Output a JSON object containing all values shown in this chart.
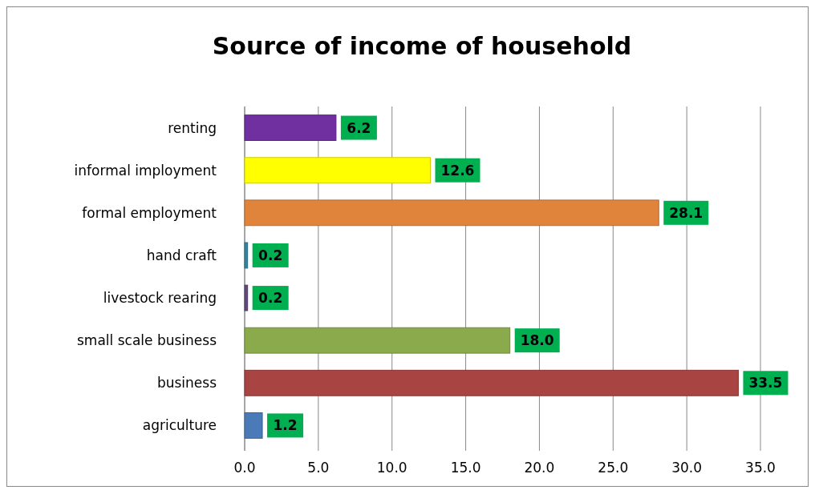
{
  "chart_data": {
    "type": "bar",
    "orientation": "horizontal",
    "title": "Source of income of household",
    "categories": [
      "renting",
      "informal imployment",
      "formal employment",
      "hand craft",
      "livestock rearing",
      "small scale business",
      "business",
      "agriculture"
    ],
    "values": [
      6.2,
      12.6,
      28.1,
      0.2,
      0.2,
      18.0,
      33.5,
      1.2
    ],
    "colors": [
      "#7030a0",
      "#ffff00",
      "#e0843c",
      "#31859c",
      "#604a7b",
      "#8aaa4c",
      "#a84442",
      "#4a7ab8"
    ],
    "value_labels": [
      "6.2",
      "12.6",
      "28.1",
      "0.2",
      "0.2",
      "18.0",
      "33.5",
      "1.2"
    ],
    "xlim": [
      0,
      35
    ],
    "xticks": [
      {
        "value": 0,
        "label": "0.0"
      },
      {
        "value": 5,
        "label": "5.0"
      },
      {
        "value": 10,
        "label": "10.0"
      },
      {
        "value": 15,
        "label": "15.0"
      },
      {
        "value": 20,
        "label": "20.0"
      },
      {
        "value": 25,
        "label": "25.0"
      },
      {
        "value": 30,
        "label": "30.0"
      },
      {
        "value": 35,
        "label": "35.0"
      }
    ],
    "grid": "x"
  }
}
